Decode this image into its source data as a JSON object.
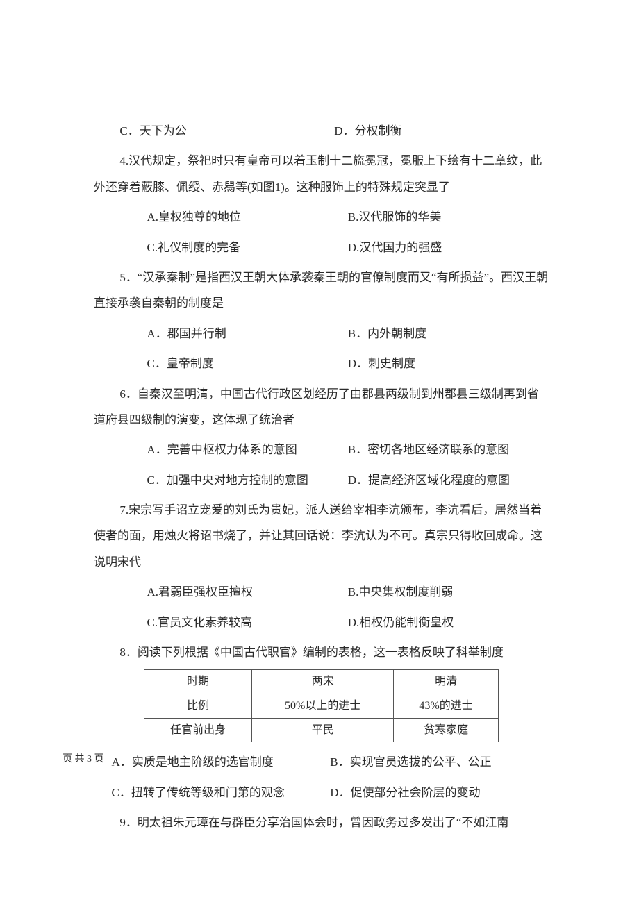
{
  "q3_opts": {
    "c": "C．天下为公",
    "d": "D．分权制衡"
  },
  "q4": {
    "stem": "4.汉代规定，祭祀时只有皇帝可以着玉制十二旒冕冠，冕服上下绘有十二章纹，此外还穿着蔽膝、佩绶、赤舄等(如图1)。这种服饰上的特殊规定突显了",
    "a": "A.皇权独尊的地位",
    "b": "B.汉代服饰的华美",
    "c": "C.礼仪制度的完备",
    "d": "D.汉代国力的强盛"
  },
  "q5": {
    "stem": "5．“汉承秦制”是指西汉王朝大体承袭秦王朝的官僚制度而又“有所损益”。西汉王朝直接承袭自秦朝的制度是",
    "a": "A．郡国并行制",
    "b": "B．内外朝制度",
    "c": "C．皇帝制度",
    "d": "D．刺史制度"
  },
  "q6": {
    "stem": "6．自秦汉至明清，中国古代行政区划经历了由郡县两级制到州郡县三级制再到省道府县四级制的演变，这体现了统治者",
    "a": "A．完善中枢权力体系的意图",
    "b": "B．密切各地区经济联系的意图",
    "c": "C．加强中央对地方控制的意图",
    "d": "D．提高经济区域化程度的意图"
  },
  "q7": {
    "stem": "7.宋宗写手诏立宠爱的刘氏为贵妃，派人送给宰相李沆颁布，李沆看后，居然当着使者的面，用烛火将诏书烧了，并让其回话说：李沆认为不可。真宗只得收回成命。这说明宋代",
    "a": "A.君弱臣强权臣擅权",
    "b": "B.中央集权制度削弱",
    "c": "C.官员文化素养较高",
    "d": "D.相权仍能制衡皇权"
  },
  "q8": {
    "stem": "8．阅读下列根据《中国古代职官》编制的表格，这一表格反映了科举制度",
    "table": {
      "r1": [
        "时期",
        "两宋",
        "明清"
      ],
      "r2": [
        "比例",
        "50%以上的进士",
        "43%的进士"
      ],
      "r3": [
        "任官前出身",
        "平民",
        "贫寒家庭"
      ]
    },
    "a": "A．实质是地主阶级的选官制度",
    "b": "B．实现官员选拔的公平、公正",
    "c": "C．扭转了传统等级和门第的观念",
    "d": "D．促使部分社会阶层的变动"
  },
  "q9": {
    "stem": "9．明太祖朱元璋在与群臣分享治国体会时，曾因政务过多发出了“不如江南"
  },
  "footer": "页 共 3 页"
}
